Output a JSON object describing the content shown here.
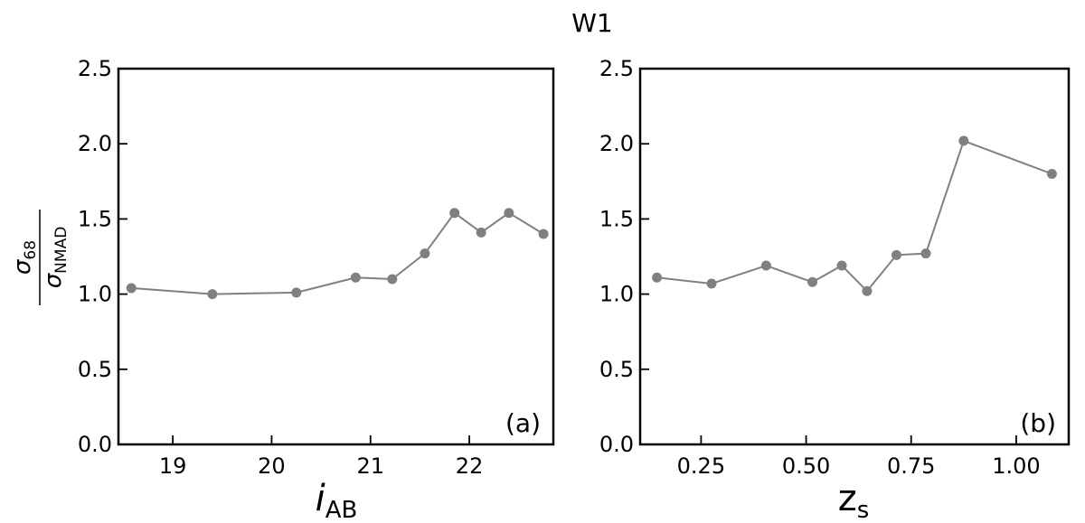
{
  "figure": {
    "title": "W1",
    "ylabel": {
      "numerator": "σ",
      "numerator_sub": "68",
      "denominator": "σ",
      "denominator_sub": "NMAD"
    }
  },
  "chart_data": [
    {
      "type": "line",
      "panel_label": "(a)",
      "xlabel": {
        "main": "i",
        "sub": "AB"
      },
      "xlim": [
        18.45,
        22.85
      ],
      "ylim": [
        0.0,
        2.5
      ],
      "xticks": [
        19,
        20,
        21,
        22
      ],
      "xtick_labels": [
        "19",
        "20",
        "21",
        "22"
      ],
      "yticks": [
        0.0,
        0.5,
        1.0,
        1.5,
        2.0,
        2.5
      ],
      "ytick_labels": [
        "0.0",
        "0.5",
        "1.0",
        "1.5",
        "2.0",
        "2.5"
      ],
      "grid": false,
      "color": "#808080",
      "x": [
        18.58,
        19.4,
        20.25,
        20.85,
        21.22,
        21.55,
        21.85,
        22.12,
        22.4,
        22.75
      ],
      "y": [
        1.04,
        1.0,
        1.01,
        1.11,
        1.1,
        1.27,
        1.54,
        1.41,
        1.54,
        1.4
      ]
    },
    {
      "type": "line",
      "panel_label": "(b)",
      "xlabel": {
        "main": "z",
        "sub": "s"
      },
      "xlim": [
        0.105,
        1.125
      ],
      "ylim": [
        0.0,
        2.5
      ],
      "xticks": [
        0.25,
        0.5,
        0.75,
        1.0
      ],
      "xtick_labels": [
        "0.25",
        "0.50",
        "0.75",
        "1.00"
      ],
      "yticks": [
        0.0,
        0.5,
        1.0,
        1.5,
        2.0,
        2.5
      ],
      "ytick_labels": [
        "0.0",
        "0.5",
        "1.0",
        "1.5",
        "2.0",
        "2.5"
      ],
      "grid": false,
      "color": "#808080",
      "x": [
        0.145,
        0.275,
        0.405,
        0.515,
        0.585,
        0.645,
        0.715,
        0.785,
        0.875,
        1.085
      ],
      "y": [
        1.11,
        1.07,
        1.19,
        1.08,
        1.19,
        1.02,
        1.26,
        1.27,
        2.02,
        1.8
      ]
    }
  ]
}
